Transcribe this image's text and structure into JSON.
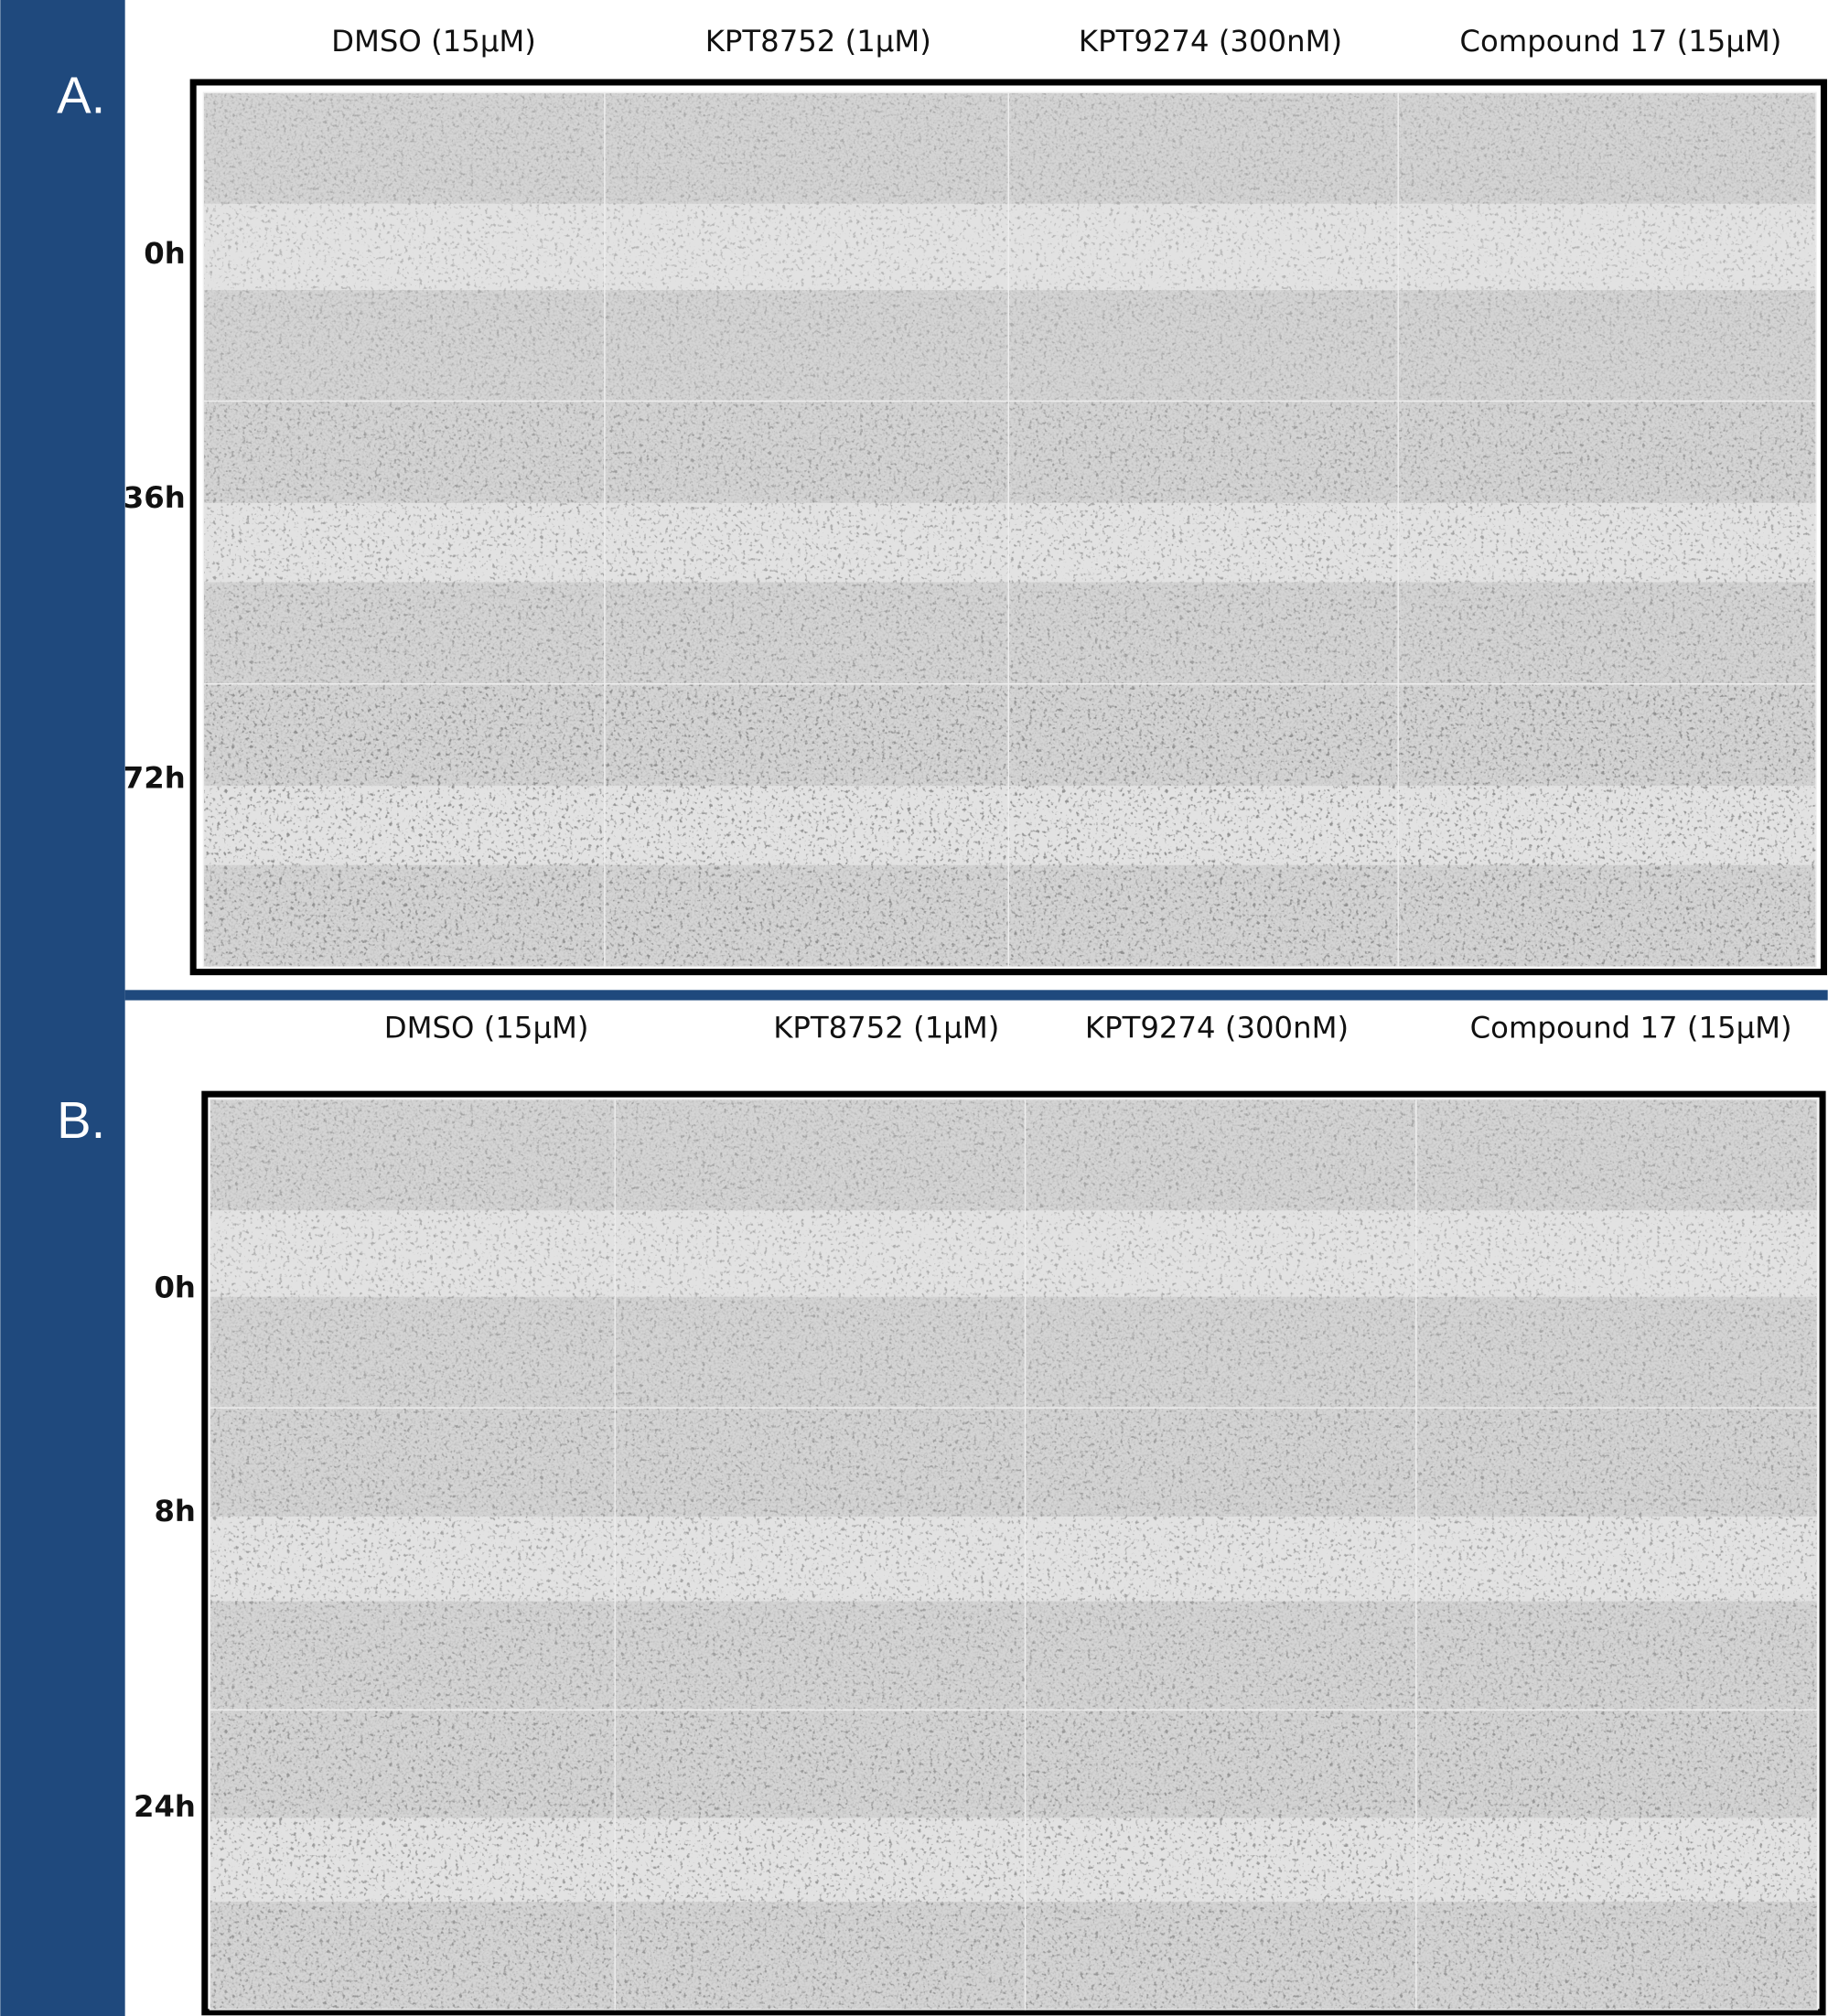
{
  "panels": [
    {
      "label": "A.",
      "columns": [
        "DMSO (15µM)",
        "KPT8752 (1µM)",
        "KPT9274 (300nM)",
        "Compound 17 (15µM)"
      ],
      "rows": [
        "0h",
        "36h",
        "72h"
      ]
    },
    {
      "label": "B.",
      "columns": [
        "DMSO (15µM)",
        "KPT8752 (1µM)",
        "KPT9274 (300nM)",
        "Compound 17 (15µM)"
      ],
      "rows": [
        "0h",
        "8h",
        "24h"
      ]
    }
  ]
}
